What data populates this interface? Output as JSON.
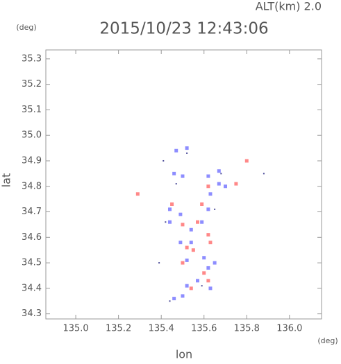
{
  "chart_data": {
    "type": "scatter",
    "title": "2015/10/23 12:43:06",
    "subtitle": "ALT(km) 2.0",
    "y_unit": "(deg)",
    "x_unit": "(deg)",
    "xlabel": "lon",
    "ylabel": "lat",
    "xlim": [
      134.86,
      136.15
    ],
    "ylim": [
      34.28,
      35.335
    ],
    "xticks": [
      {
        "value": 135,
        "label": "135.0"
      },
      {
        "value": 135.2,
        "label": "135.2"
      },
      {
        "value": 135.4,
        "label": "135.4"
      },
      {
        "value": 135.6,
        "label": "135.6"
      },
      {
        "value": 135.8,
        "label": "135.8"
      },
      {
        "value": 136,
        "label": "136.0"
      }
    ],
    "yticks": [
      34.3,
      34.4,
      34.5,
      34.6,
      34.7,
      34.8,
      34.9,
      {
        "value": 35,
        "label": "35.0"
      },
      35.1,
      35.2,
      35.3
    ],
    "series": [
      {
        "color": "#7070ff",
        "x": [
          135.47,
          135.52,
          135.46,
          135.5,
          135.62,
          135.67,
          135.63,
          135.44,
          135.49,
          135.62,
          135.54,
          135.59,
          135.49,
          135.54,
          135.6,
          135.52,
          135.62,
          135.65,
          135.52,
          135.57,
          135.63,
          135.44,
          135.46,
          135.5,
          135.67,
          135.7
        ],
        "y": [
          34.94,
          34.95,
          34.85,
          34.84,
          34.84,
          34.81,
          34.77,
          34.71,
          34.69,
          34.71,
          34.63,
          34.66,
          34.58,
          34.58,
          34.52,
          34.51,
          34.48,
          34.5,
          34.41,
          34.43,
          34.4,
          34.66,
          34.36,
          34.37,
          34.86,
          34.8
        ]
      },
      {
        "color": "#ff6a6a",
        "x": [
          135.62,
          135.59,
          135.57,
          135.5,
          135.62,
          135.52,
          135.55,
          135.63,
          135.5,
          135.6,
          135.62,
          135.54,
          135.8,
          135.75,
          135.29,
          135.45
        ],
        "y": [
          34.8,
          34.73,
          34.66,
          34.65,
          34.61,
          34.56,
          34.55,
          34.58,
          34.5,
          34.46,
          34.43,
          34.4,
          34.9,
          34.81,
          34.77,
          34.73
        ]
      },
      {
        "color": "#202080",
        "x": [
          135.41,
          135.52,
          135.47,
          135.68,
          135.42,
          135.39,
          135.44,
          135.59,
          135.88,
          135.65
        ],
        "y": [
          34.9,
          34.93,
          34.81,
          34.85,
          34.66,
          34.5,
          34.35,
          34.41,
          34.85,
          34.71
        ]
      }
    ]
  }
}
